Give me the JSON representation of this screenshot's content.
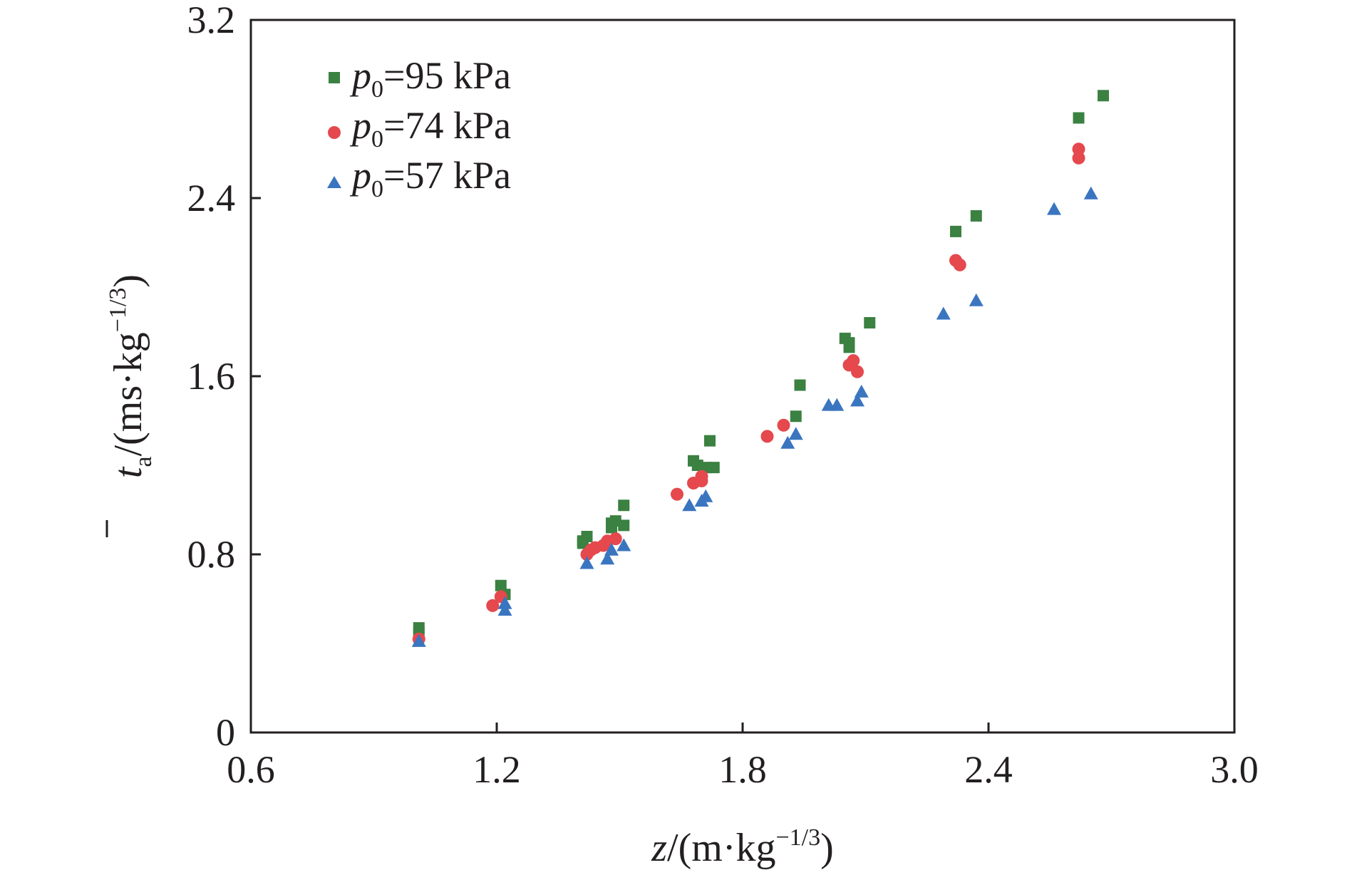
{
  "chart_data": {
    "type": "scatter",
    "xlim": [
      0.6,
      3.0
    ],
    "ylim": [
      0,
      3.2
    ],
    "x_ticks": [
      "0.6",
      "1.2",
      "1.8",
      "2.4",
      "3.0"
    ],
    "y_ticks": [
      "0",
      "0.8",
      "1.6",
      "2.4",
      "3.2"
    ],
    "x_tick_values": [
      0.6,
      1.2,
      1.8,
      2.4,
      3.0
    ],
    "y_tick_values": [
      0,
      0.8,
      1.6,
      2.4,
      3.2
    ],
    "xlabel": {
      "var": "z",
      "pre": "/(m·kg",
      "sup": "−1/3",
      "post": ")"
    },
    "ylabel": {
      "var": "t",
      "sub": "a",
      "pre": "/(ms·kg",
      "sup": "−1/3",
      "post": ")"
    },
    "grid": false,
    "legend_position": "top-left",
    "series": [
      {
        "name": "p0=95 kPa",
        "label_var": "p",
        "label_sub": "0",
        "label_rest": "=95 kPa",
        "marker": "square",
        "color": "#3b8141",
        "points": [
          [
            1.01,
            0.47
          ],
          [
            1.01,
            0.45
          ],
          [
            1.21,
            0.66
          ],
          [
            1.22,
            0.62
          ],
          [
            1.41,
            0.86
          ],
          [
            1.42,
            0.88
          ],
          [
            1.41,
            0.85
          ],
          [
            1.48,
            0.92
          ],
          [
            1.48,
            0.94
          ],
          [
            1.49,
            0.95
          ],
          [
            1.51,
            1.02
          ],
          [
            1.51,
            0.93
          ],
          [
            1.68,
            1.22
          ],
          [
            1.69,
            1.2
          ],
          [
            1.71,
            1.19
          ],
          [
            1.73,
            1.19
          ],
          [
            1.72,
            1.31
          ],
          [
            1.93,
            1.42
          ],
          [
            1.94,
            1.56
          ],
          [
            2.05,
            1.77
          ],
          [
            2.06,
            1.75
          ],
          [
            2.06,
            1.73
          ],
          [
            2.11,
            1.84
          ],
          [
            2.32,
            2.25
          ],
          [
            2.37,
            2.32
          ],
          [
            2.62,
            2.76
          ],
          [
            2.68,
            2.86
          ]
        ]
      },
      {
        "name": "p0=74 kPa",
        "label_var": "p",
        "label_sub": "0",
        "label_rest": "=74 kPa",
        "marker": "circle",
        "color": "#e5484d",
        "points": [
          [
            1.01,
            0.42
          ],
          [
            1.19,
            0.57
          ],
          [
            1.21,
            0.61
          ],
          [
            1.42,
            0.8
          ],
          [
            1.43,
            0.82
          ],
          [
            1.44,
            0.83
          ],
          [
            1.46,
            0.84
          ],
          [
            1.47,
            0.86
          ],
          [
            1.49,
            0.87
          ],
          [
            1.64,
            1.07
          ],
          [
            1.68,
            1.12
          ],
          [
            1.7,
            1.13
          ],
          [
            1.7,
            1.15
          ],
          [
            1.86,
            1.33
          ],
          [
            1.9,
            1.38
          ],
          [
            2.06,
            1.65
          ],
          [
            2.07,
            1.67
          ],
          [
            2.08,
            1.62
          ],
          [
            2.32,
            2.12
          ],
          [
            2.33,
            2.1
          ],
          [
            2.62,
            2.62
          ],
          [
            2.62,
            2.58
          ]
        ]
      },
      {
        "name": "p0=57 kPa",
        "label_var": "p",
        "label_sub": "0",
        "label_rest": "=57 kPa",
        "marker": "triangle",
        "color": "#3a75c0",
        "points": [
          [
            1.01,
            0.41
          ],
          [
            1.22,
            0.58
          ],
          [
            1.22,
            0.55
          ],
          [
            1.42,
            0.76
          ],
          [
            1.47,
            0.78
          ],
          [
            1.48,
            0.82
          ],
          [
            1.51,
            0.84
          ],
          [
            1.67,
            1.02
          ],
          [
            1.7,
            1.04
          ],
          [
            1.71,
            1.06
          ],
          [
            1.91,
            1.3
          ],
          [
            1.93,
            1.34
          ],
          [
            2.01,
            1.47
          ],
          [
            2.03,
            1.47
          ],
          [
            2.08,
            1.49
          ],
          [
            2.09,
            1.53
          ],
          [
            2.29,
            1.88
          ],
          [
            2.37,
            1.94
          ],
          [
            2.56,
            2.35
          ],
          [
            2.65,
            2.42
          ]
        ]
      }
    ]
  }
}
